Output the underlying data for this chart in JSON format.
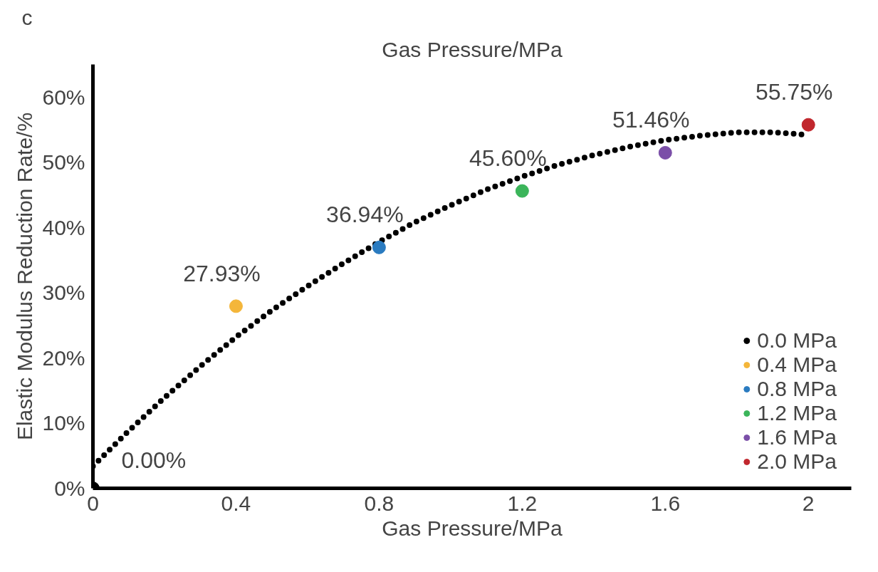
{
  "chart_data": {
    "type": "scatter",
    "annotations": [
      "Gas Pressure/MPa",
      "c"
    ],
    "xlabel": "Gas Pressure/MPa",
    "ylabel": "Elastic Modulus Reduction Rate/%",
    "xlim": [
      0,
      2.12
    ],
    "ylim": [
      0,
      65
    ],
    "xticks": [
      {
        "value": 0,
        "label": "0"
      },
      0.4,
      0.8,
      1.2,
      1.6,
      {
        "value": 2,
        "label": "2"
      }
    ],
    "yticks": [
      {
        "value": 0,
        "label": "0%"
      },
      {
        "value": 10,
        "label": "10%"
      },
      {
        "value": 20,
        "label": "20%"
      },
      {
        "value": 30,
        "label": "30%"
      },
      {
        "value": 40,
        "label": "40%"
      },
      {
        "value": 50,
        "label": "50%"
      },
      {
        "value": 60,
        "label": "60%"
      }
    ],
    "grid": false,
    "legend": "bottom right",
    "marker": "circle",
    "series": [
      {
        "type": "line",
        "color": "#000000",
        "line_style": "dotted",
        "marker": "none",
        "x": [
          0,
          0.1,
          0.2,
          0.3,
          0.4,
          0.5,
          0.6,
          0.7,
          0.8,
          0.9,
          1.0,
          1.1,
          1.2,
          1.3,
          1.4,
          1.5,
          1.6,
          1.7,
          1.8,
          1.9,
          2.0
        ],
        "values": [
          3.4,
          8.8,
          13.9,
          18.7,
          23.2,
          27.3,
          31.0,
          34.5,
          37.8,
          40.8,
          43.4,
          45.8,
          47.8,
          49.6,
          51.1,
          52.4,
          53.4,
          54.1,
          54.6,
          54.6,
          54.2
        ]
      },
      {
        "name": "0.0 MPa",
        "color": "#000000",
        "x": [
          0
        ],
        "values": [
          0
        ],
        "value_labels": [
          "0.00%"
        ]
      },
      {
        "name": "0.4 MPa",
        "color": "#f4b63a",
        "x": [
          0.4
        ],
        "values": [
          27.93
        ],
        "value_labels": [
          "27.93%"
        ]
      },
      {
        "name": "0.8 MPa",
        "color": "#2a7bc0",
        "x": [
          0.8
        ],
        "values": [
          36.94
        ],
        "value_labels": [
          "36.94%"
        ]
      },
      {
        "name": "1.2 MPa",
        "color": "#3bb55a",
        "x": [
          1.2
        ],
        "values": [
          45.6
        ],
        "value_labels": [
          "45.60%"
        ]
      },
      {
        "name": "1.6 MPa",
        "color": "#7b4fa8",
        "x": [
          1.6
        ],
        "values": [
          51.46
        ],
        "value_labels": [
          "51.46%"
        ]
      },
      {
        "name": "2.0 MPa",
        "color": "#c1272d",
        "x": [
          2.0
        ],
        "values": [
          55.75
        ],
        "value_labels": [
          "55.75%"
        ]
      }
    ]
  }
}
